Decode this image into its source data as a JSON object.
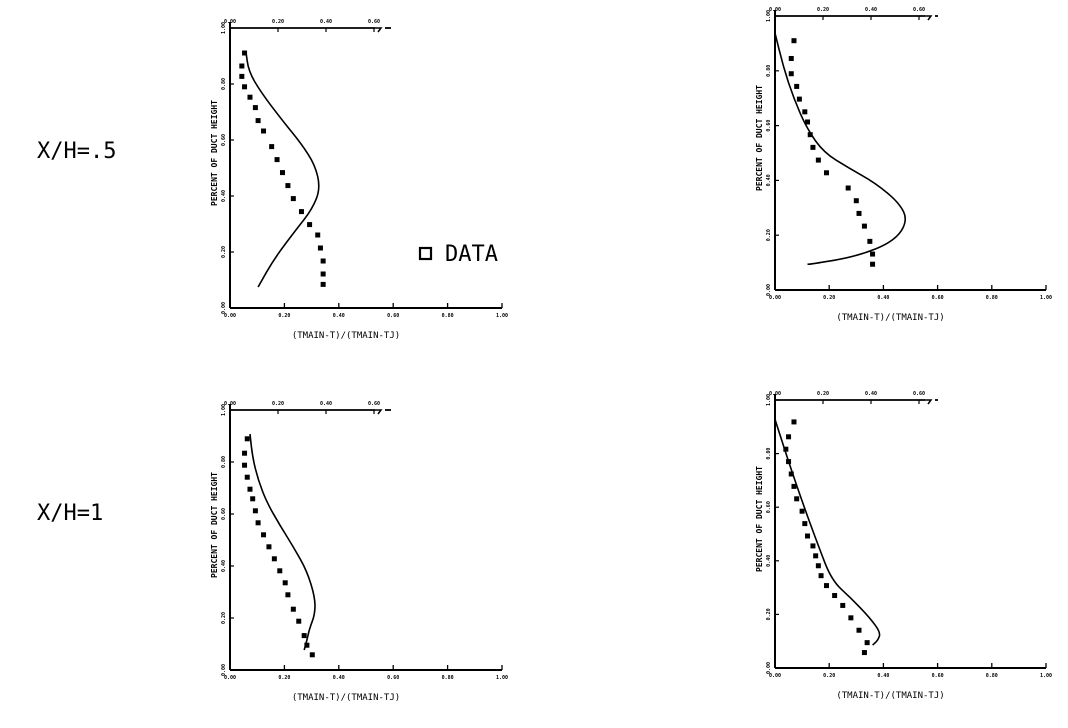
{
  "row_labels": [
    "X/H=.5",
    "X/H=1"
  ],
  "legend": {
    "marker": "square",
    "label": "DATA"
  },
  "chart_data": [
    {
      "type": "line",
      "panel": "row1-left",
      "xlabel": "(TMAIN-T)/(TMAIN-TJ)",
      "ylabel": "PERCENT OF DUCT HEIGHT",
      "xlim": [
        0,
        1
      ],
      "ylim": [
        0,
        1
      ],
      "x_tick_labels": [
        "0.00",
        "0.20",
        "0.40",
        "0.60",
        "0.80",
        "1.00"
      ],
      "top_tick_labels": [
        "0.00",
        "0.20",
        "0.40",
        "0.60"
      ],
      "y_tick_labels": [
        "0.00",
        "0.20",
        "0.40",
        "0.60",
        "0.80",
        "1.00"
      ],
      "series": [
        {
          "kind": "curve",
          "points": [
            [
              0.1,
              0.05
            ],
            [
              0.16,
              0.16
            ],
            [
              0.24,
              0.27
            ],
            [
              0.3,
              0.35
            ],
            [
              0.33,
              0.43
            ],
            [
              0.31,
              0.52
            ],
            [
              0.26,
              0.6
            ],
            [
              0.19,
              0.69
            ],
            [
              0.11,
              0.8
            ],
            [
              0.065,
              0.88
            ],
            [
              0.055,
              0.955
            ]
          ]
        },
        {
          "kind": "data",
          "points": [
            [
              0.05,
              0.95
            ],
            [
              0.04,
              0.9
            ],
            [
              0.04,
              0.86
            ],
            [
              0.05,
              0.82
            ],
            [
              0.07,
              0.78
            ],
            [
              0.09,
              0.74
            ],
            [
              0.1,
              0.69
            ],
            [
              0.12,
              0.65
            ],
            [
              0.15,
              0.59
            ],
            [
              0.17,
              0.54
            ],
            [
              0.19,
              0.49
            ],
            [
              0.21,
              0.44
            ],
            [
              0.23,
              0.39
            ],
            [
              0.26,
              0.34
            ],
            [
              0.29,
              0.29
            ],
            [
              0.32,
              0.25
            ],
            [
              0.33,
              0.2
            ],
            [
              0.34,
              0.15
            ],
            [
              0.34,
              0.1
            ],
            [
              0.34,
              0.06
            ]
          ]
        }
      ]
    },
    {
      "type": "line",
      "panel": "row1-right",
      "xlabel": "(TMAIN-T)/(TMAIN-TJ)",
      "ylabel": "PERCENT OF DUCT HEIGHT",
      "xlim": [
        0,
        1
      ],
      "ylim": [
        0,
        1
      ],
      "x_tick_labels": [
        "0.00",
        "0.20",
        "0.40",
        "0.60",
        "0.80",
        "1.00"
      ],
      "top_tick_labels": [
        "0.00",
        "0.20",
        "0.40",
        "0.60"
      ],
      "y_tick_labels": [
        "0.00",
        "0.20",
        "0.40",
        "0.60",
        "0.80",
        "1.00"
      ],
      "series": [
        {
          "kind": "curve",
          "points": [
            [
              0.0,
              0.98
            ],
            [
              0.03,
              0.85
            ],
            [
              0.07,
              0.72
            ],
            [
              0.12,
              0.6
            ],
            [
              0.18,
              0.51
            ],
            [
              0.27,
              0.45
            ],
            [
              0.37,
              0.39
            ],
            [
              0.46,
              0.31
            ],
            [
              0.49,
              0.24
            ],
            [
              0.44,
              0.16
            ],
            [
              0.3,
              0.1
            ],
            [
              0.13,
              0.07
            ],
            [
              0.12,
              0.07
            ]
          ]
        },
        {
          "kind": "data",
          "points": [
            [
              0.07,
              0.95
            ],
            [
              0.06,
              0.88
            ],
            [
              0.06,
              0.82
            ],
            [
              0.08,
              0.77
            ],
            [
              0.09,
              0.72
            ],
            [
              0.11,
              0.67
            ],
            [
              0.12,
              0.63
            ],
            [
              0.13,
              0.58
            ],
            [
              0.14,
              0.53
            ],
            [
              0.16,
              0.48
            ],
            [
              0.19,
              0.43
            ],
            [
              0.27,
              0.37
            ],
            [
              0.3,
              0.32
            ],
            [
              0.31,
              0.27
            ],
            [
              0.33,
              0.22
            ],
            [
              0.35,
              0.16
            ],
            [
              0.36,
              0.11
            ],
            [
              0.36,
              0.07
            ]
          ]
        }
      ]
    },
    {
      "type": "line",
      "panel": "row2-left",
      "xlabel": "(TMAIN-T)/(TMAIN-TJ)",
      "ylabel": "PERCENT OF DUCT HEIGHT",
      "xlim": [
        0,
        1
      ],
      "ylim": [
        0,
        1
      ],
      "x_tick_labels": [
        "0.00",
        "0.20",
        "0.40",
        "0.60",
        "0.80",
        "1.00"
      ],
      "top_tick_labels": [
        "0.00",
        "0.20",
        "0.40",
        "0.60"
      ],
      "y_tick_labels": [
        "0.00",
        "0.20",
        "0.40",
        "0.60",
        "0.80",
        "1.00"
      ],
      "series": [
        {
          "kind": "curve",
          "points": [
            [
              0.07,
              0.95
            ],
            [
              0.08,
              0.85
            ],
            [
              0.1,
              0.76
            ],
            [
              0.13,
              0.67
            ],
            [
              0.18,
              0.57
            ],
            [
              0.23,
              0.48
            ],
            [
              0.28,
              0.38
            ],
            [
              0.31,
              0.27
            ],
            [
              0.31,
              0.2
            ],
            [
              0.29,
              0.14
            ],
            [
              0.28,
              0.09
            ],
            [
              0.27,
              0.05
            ]
          ]
        },
        {
          "kind": "data",
          "points": [
            [
              0.06,
              0.93
            ],
            [
              0.05,
              0.87
            ],
            [
              0.05,
              0.82
            ],
            [
              0.06,
              0.77
            ],
            [
              0.07,
              0.72
            ],
            [
              0.08,
              0.68
            ],
            [
              0.09,
              0.63
            ],
            [
              0.1,
              0.58
            ],
            [
              0.12,
              0.53
            ],
            [
              0.14,
              0.48
            ],
            [
              0.16,
              0.43
            ],
            [
              0.18,
              0.38
            ],
            [
              0.2,
              0.33
            ],
            [
              0.21,
              0.28
            ],
            [
              0.23,
              0.22
            ],
            [
              0.25,
              0.17
            ],
            [
              0.27,
              0.11
            ],
            [
              0.28,
              0.07
            ],
            [
              0.3,
              0.03
            ]
          ]
        }
      ]
    },
    {
      "type": "line",
      "panel": "row2-right",
      "xlabel": "(TMAIN-T)/(TMAIN-TJ)",
      "ylabel": "PERCENT OF DUCT HEIGHT",
      "xlim": [
        0,
        1
      ],
      "ylim": [
        0,
        1
      ],
      "x_tick_labels": [
        "0.00",
        "0.20",
        "0.40",
        "0.60",
        "0.80",
        "1.00"
      ],
      "top_tick_labels": [
        "0.00",
        "0.20",
        "0.40",
        "0.60"
      ],
      "y_tick_labels": [
        "0.00",
        "0.20",
        "0.40",
        "0.60",
        "0.80",
        "1.00"
      ],
      "series": [
        {
          "kind": "curve",
          "points": [
            [
              0.0,
              0.97
            ],
            [
              0.05,
              0.8
            ],
            [
              0.1,
              0.64
            ],
            [
              0.16,
              0.46
            ],
            [
              0.21,
              0.32
            ],
            [
              0.28,
              0.25
            ],
            [
              0.35,
              0.17
            ],
            [
              0.39,
              0.11
            ],
            [
              0.38,
              0.08
            ],
            [
              0.36,
              0.06
            ]
          ]
        },
        {
          "kind": "data",
          "points": [
            [
              0.07,
              0.96
            ],
            [
              0.05,
              0.9
            ],
            [
              0.04,
              0.85
            ],
            [
              0.05,
              0.8
            ],
            [
              0.06,
              0.75
            ],
            [
              0.07,
              0.7
            ],
            [
              0.08,
              0.65
            ],
            [
              0.1,
              0.6
            ],
            [
              0.11,
              0.55
            ],
            [
              0.12,
              0.5
            ],
            [
              0.14,
              0.46
            ],
            [
              0.15,
              0.42
            ],
            [
              0.16,
              0.38
            ],
            [
              0.17,
              0.34
            ],
            [
              0.19,
              0.3
            ],
            [
              0.22,
              0.26
            ],
            [
              0.25,
              0.22
            ],
            [
              0.28,
              0.17
            ],
            [
              0.31,
              0.12
            ],
            [
              0.34,
              0.07
            ],
            [
              0.33,
              0.03
            ]
          ]
        }
      ]
    }
  ]
}
